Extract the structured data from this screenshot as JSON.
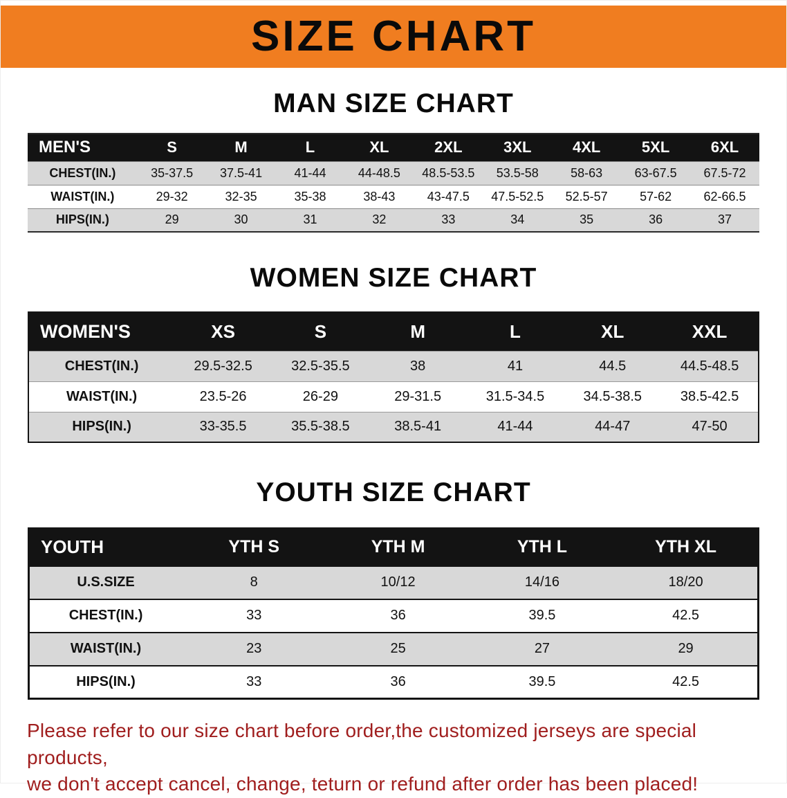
{
  "banner": {
    "title": "SIZE CHART"
  },
  "colors": {
    "banner_bg": "#F07D20",
    "header_bg": "#131313",
    "stripe": "#D8D8D8",
    "disclaimer_red": "#A01E1E"
  },
  "sections": {
    "men": {
      "heading": "MAN SIZE CHART",
      "table": {
        "header": [
          "MEN'S",
          "S",
          "M",
          "L",
          "XL",
          "2XL",
          "3XL",
          "4XL",
          "5XL",
          "6XL"
        ],
        "rows": [
          {
            "label": "CHEST(IN.)",
            "values": [
              "35-37.5",
              "37.5-41",
              "41-44",
              "44-48.5",
              "48.5-53.5",
              "53.5-58",
              "58-63",
              "63-67.5",
              "67.5-72"
            ]
          },
          {
            "label": "WAIST(IN.)",
            "values": [
              "29-32",
              "32-35",
              "35-38",
              "38-43",
              "43-47.5",
              "47.5-52.5",
              "52.5-57",
              "57-62",
              "62-66.5"
            ]
          },
          {
            "label": "HIPS(IN.)",
            "values": [
              "29",
              "30",
              "31",
              "32",
              "33",
              "34",
              "35",
              "36",
              "37"
            ]
          }
        ]
      }
    },
    "women": {
      "heading": "WOMEN SIZE CHART",
      "table": {
        "header": [
          "WOMEN'S",
          "XS",
          "S",
          "M",
          "L",
          "XL",
          "XXL"
        ],
        "rows": [
          {
            "label": "CHEST(IN.)",
            "values": [
              "29.5-32.5",
              "32.5-35.5",
              "38",
              "41",
              "44.5",
              "44.5-48.5"
            ]
          },
          {
            "label": "WAIST(IN.)",
            "values": [
              "23.5-26",
              "26-29",
              "29-31.5",
              "31.5-34.5",
              "34.5-38.5",
              "38.5-42.5"
            ]
          },
          {
            "label": "HIPS(IN.)",
            "values": [
              "33-35.5",
              "35.5-38.5",
              "38.5-41",
              "41-44",
              "44-47",
              "47-50"
            ]
          }
        ]
      }
    },
    "youth": {
      "heading": "YOUTH SIZE CHART",
      "table": {
        "header": [
          "YOUTH",
          "YTH S",
          "YTH M",
          "YTH L",
          "YTH XL"
        ],
        "rows": [
          {
            "label": "U.S.SIZE",
            "values": [
              "8",
              "10/12",
              "14/16",
              "18/20"
            ]
          },
          {
            "label": "CHEST(IN.)",
            "values": [
              "33",
              "36",
              "39.5",
              "42.5"
            ]
          },
          {
            "label": "WAIST(IN.)",
            "values": [
              "23",
              "25",
              "27",
              "29"
            ]
          },
          {
            "label": "HIPS(IN.)",
            "values": [
              "33",
              "36",
              "39.5",
              "42.5"
            ]
          }
        ]
      }
    }
  },
  "disclaimer": {
    "line1": "Please refer to our size chart before order,the customized jerseys are special products,",
    "line2": "we don't accept cancel, change, teturn or refund after order has been placed!"
  }
}
